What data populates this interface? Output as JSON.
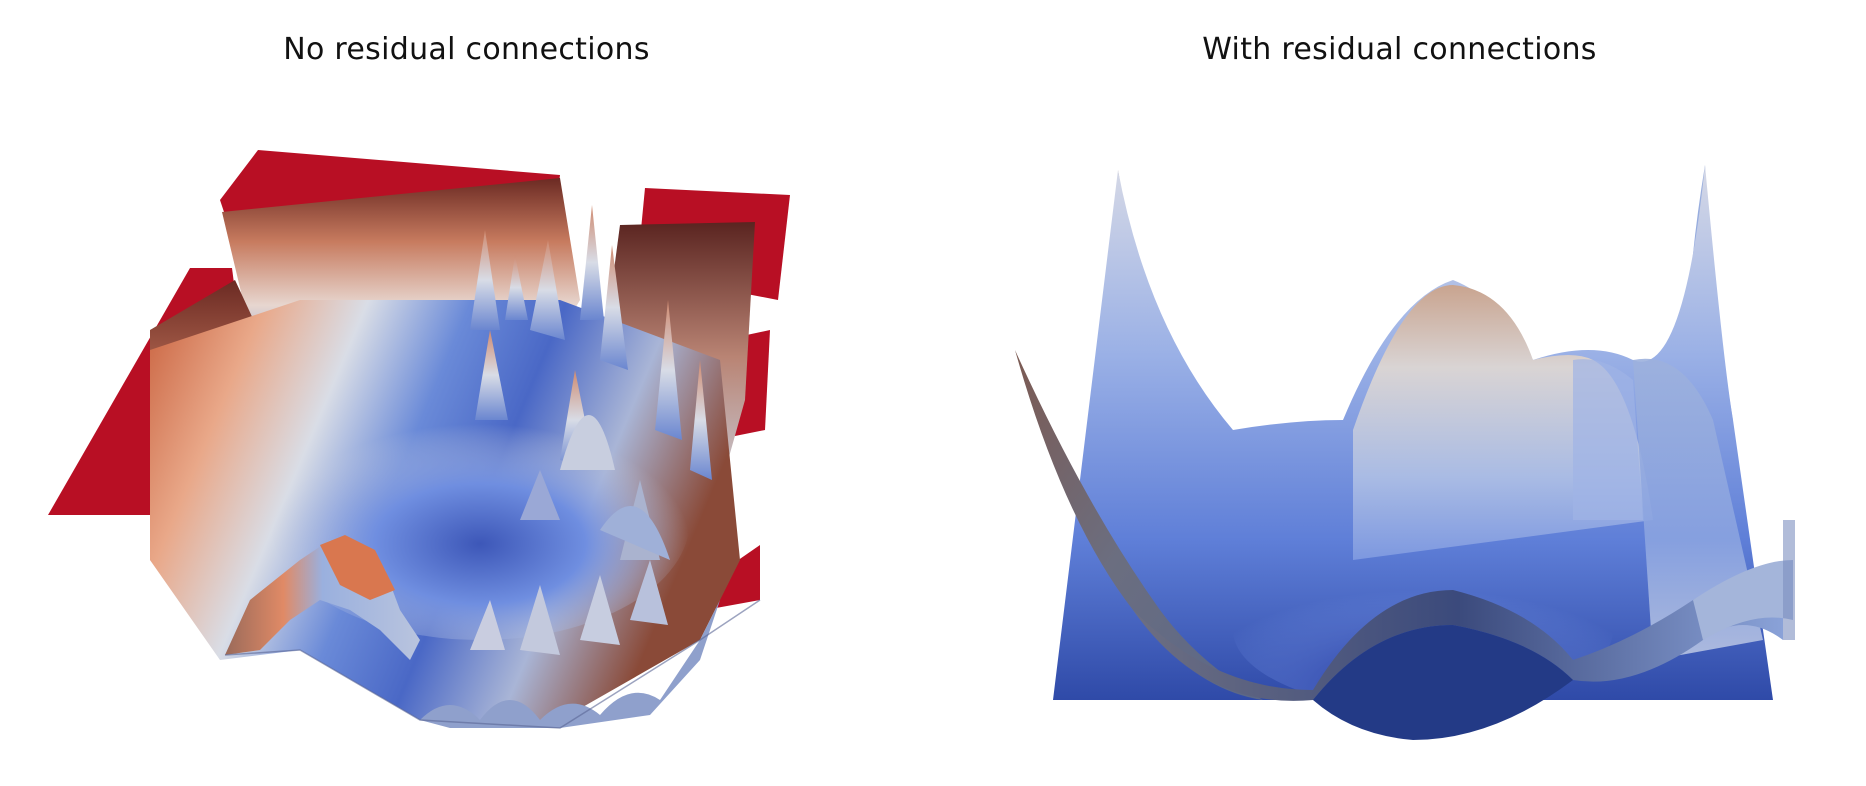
{
  "figure": {
    "panels": [
      {
        "title": "No residual connections"
      },
      {
        "title": "With residual connections"
      }
    ],
    "colors": {
      "high_loss": "#b2182b",
      "low_loss": "#3b4cc0",
      "mid": "#dddddd",
      "background": "#ffffff",
      "title_text": "#111111"
    }
  }
}
